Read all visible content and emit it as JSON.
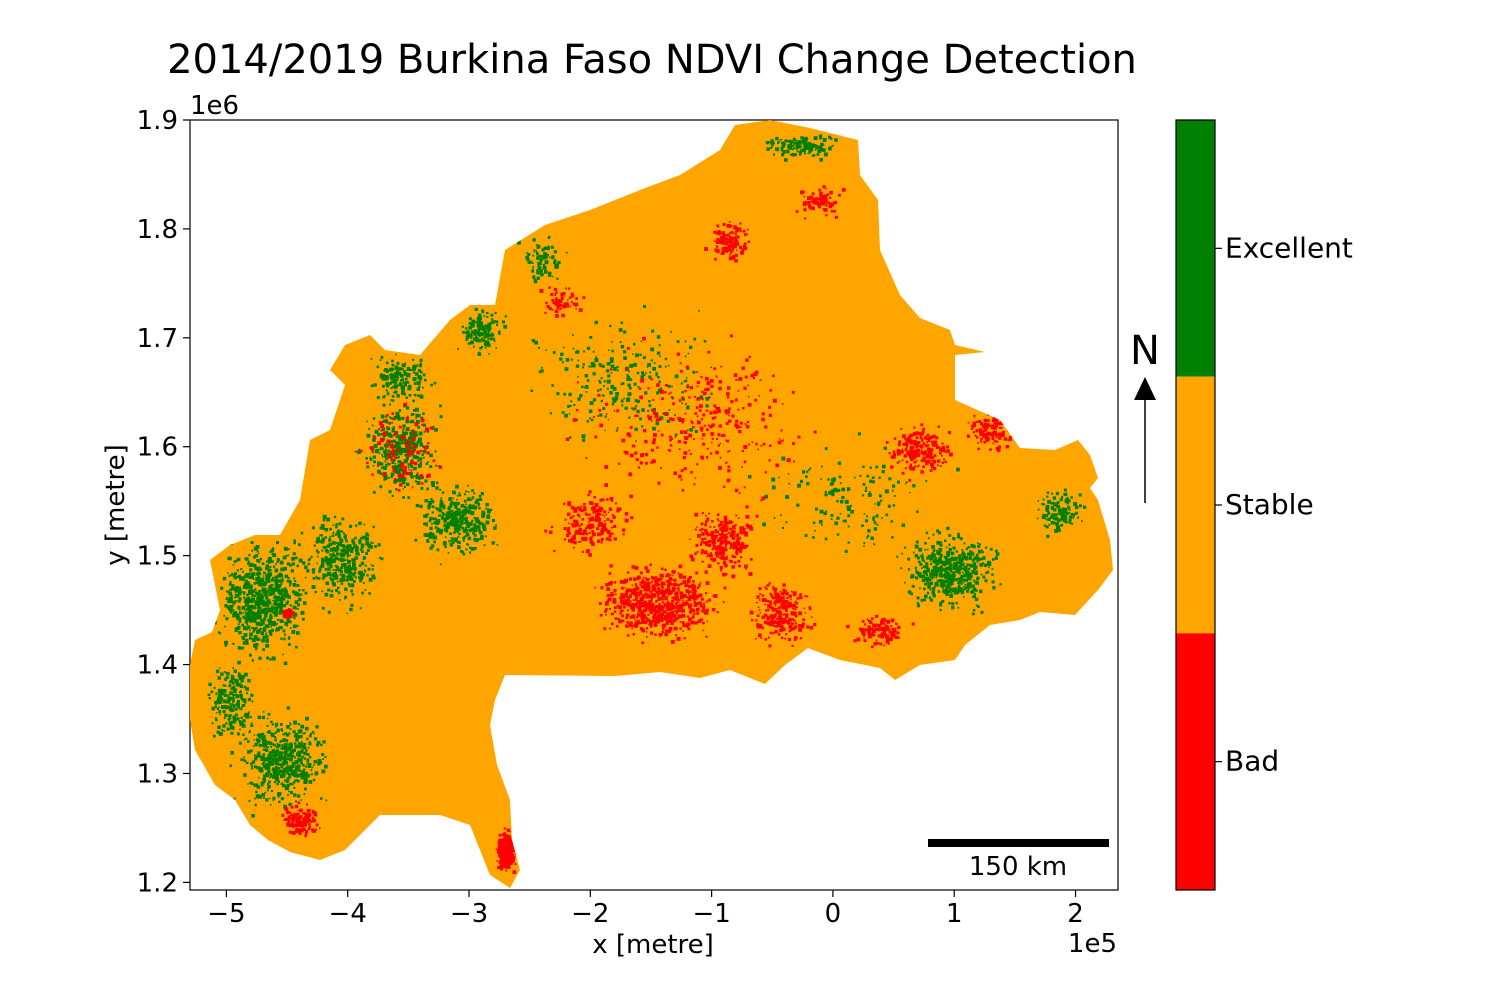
{
  "title": "2014/2019 Burkina Faso NDVI Change Detection",
  "map": {
    "xlabel": "x [metre]",
    "ylabel": "y [metre]",
    "x_offset_label": "1e5",
    "y_offset_label": "1e6",
    "xlim": [
      -5.3,
      2.35
    ],
    "ylim": [
      1.193,
      1.9
    ],
    "x_ticks": [
      {
        "value": -5,
        "label": "−5"
      },
      {
        "value": -4,
        "label": "−4"
      },
      {
        "value": -3,
        "label": "−3"
      },
      {
        "value": -2,
        "label": "−2"
      },
      {
        "value": -1,
        "label": "−1"
      },
      {
        "value": 0,
        "label": "0"
      },
      {
        "value": 1,
        "label": "1"
      },
      {
        "value": 2,
        "label": "2"
      }
    ],
    "y_ticks": [
      {
        "value": 1.2,
        "label": "1.2"
      },
      {
        "value": 1.3,
        "label": "1.3"
      },
      {
        "value": 1.4,
        "label": "1.4"
      },
      {
        "value": 1.5,
        "label": "1.5"
      },
      {
        "value": 1.6,
        "label": "1.6"
      },
      {
        "value": 1.7,
        "label": "1.7"
      },
      {
        "value": 1.8,
        "label": "1.8"
      },
      {
        "value": 1.9,
        "label": "1.9"
      }
    ],
    "base_color": "#ffa500",
    "scale_bar_label": "150 km",
    "north_arrow_label": "N"
  },
  "colorbar": {
    "classes": [
      {
        "label": "Excellent",
        "color": "#008000"
      },
      {
        "label": "Stable",
        "color": "#ffa500"
      },
      {
        "label": "Bad",
        "color": "#ff0000"
      }
    ]
  }
}
